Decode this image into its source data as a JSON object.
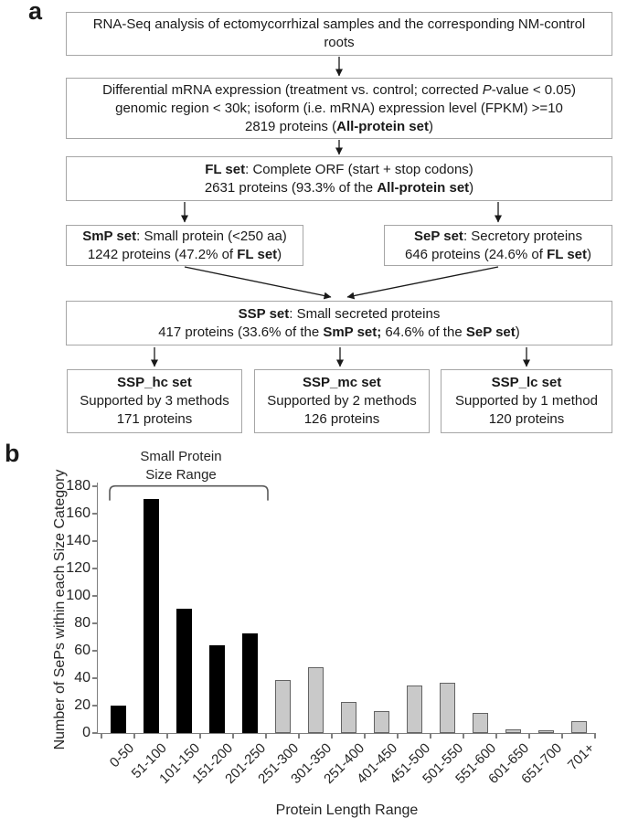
{
  "figure": {
    "panel_a_label": "a",
    "panel_b_label": "b"
  },
  "flowchart": {
    "box1": {
      "l1": "RNA-Seq analysis of ectomycorrhizal samples and the corresponding NM-control",
      "l2": "roots"
    },
    "box2": {
      "l1a": "Differential mRNA expression (treatment vs. control; corrected ",
      "l1b": "P",
      "l1c": "-value < 0.05)",
      "l2": "genomic region < 30k; isoform (i.e. mRNA) expression level (FPKM) >=10",
      "l3a": "2819 proteins (",
      "l3b": "All-protein set",
      "l3c": ")"
    },
    "box3": {
      "l1a": "FL set",
      "l1b": ": Complete ORF (start + stop codons)",
      "l2a": "2631 proteins (93.3% of the ",
      "l2b": "All-protein set",
      "l2c": ")"
    },
    "box4": {
      "l1a": "SmP set",
      "l1b": ": Small protein (<250 aa)",
      "l2a": "1242 proteins (47.2% of ",
      "l2b": "FL set",
      "l2c": ")"
    },
    "box5": {
      "l1a": "SeP set",
      "l1b": ": Secretory proteins",
      "l2a": "646 proteins (24.6% of ",
      "l2b": "FL set",
      "l2c": ")"
    },
    "box6": {
      "l1a": "SSP set",
      "l1b": ": Small secreted proteins",
      "l2a": "417 proteins (33.6% of the ",
      "l2b": "SmP set;",
      "l2c": " 64.6% of the ",
      "l2d": "SeP set",
      "l2e": ")"
    },
    "box7": {
      "l1": "SSP_hc set",
      "l2": "Supported by 3 methods",
      "l3": "171 proteins"
    },
    "box8": {
      "l1": "SSP_mc set",
      "l2": "Supported by 2 methods",
      "l3": "126 proteins"
    },
    "box9": {
      "l1": "SSP_lc set",
      "l2": "Supported by 1 method",
      "l3": "120 proteins"
    }
  },
  "chart_data": {
    "type": "bar",
    "title": "",
    "xlabel": "Protein Length Range",
    "ylabel": "Number of SePs within each Size Category",
    "categories": [
      "0-50",
      "51-100",
      "101-150",
      "151-200",
      "201-250",
      "251-300",
      "301-350",
      "251-400",
      "401-450",
      "451-500",
      "501-550",
      "551-600",
      "601-650",
      "651-700",
      "701+"
    ],
    "values": [
      20,
      171,
      91,
      64,
      73,
      39,
      48,
      23,
      16,
      35,
      37,
      15,
      3,
      2,
      9
    ],
    "black_bar_count": 5,
    "ylim": [
      0,
      180
    ],
    "yticks": [
      0,
      20,
      40,
      60,
      80,
      100,
      120,
      140,
      160,
      180
    ],
    "grid": false,
    "legend": "none",
    "colors": {
      "black_bar": "#000000",
      "gray_bar": "#c9c9c9",
      "gray_bar_border": "#636363",
      "axis": "#7f7f7f",
      "bracket": "#595959"
    },
    "annotation": {
      "line1": "Small Protein",
      "line2": "Size Range",
      "span_categories": [
        0,
        4
      ]
    }
  }
}
